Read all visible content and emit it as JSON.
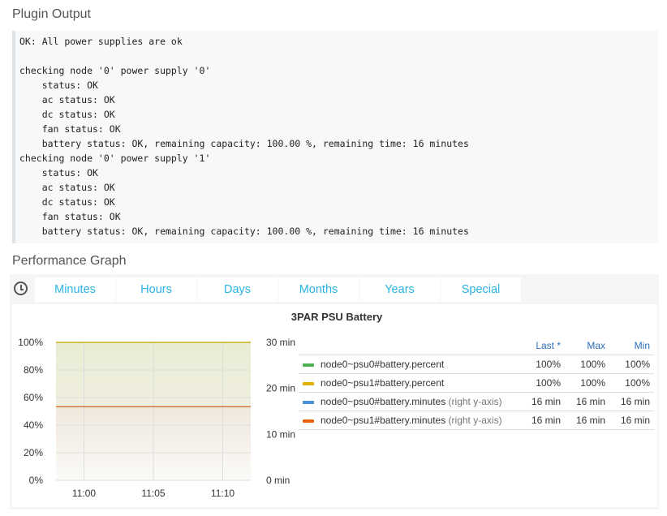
{
  "plugin_output": {
    "title": "Plugin Output",
    "lines": [
      "OK: All power supplies are ok",
      "",
      "checking node '0' power supply '0'",
      "    status: OK",
      "    ac status: OK",
      "    dc status: OK",
      "    fan status: OK",
      "    battery status: OK, remaining capacity: 100.00 %, remaining time: 16 minutes",
      "checking node '0' power supply '1'",
      "    status: OK",
      "    ac status: OK",
      "    dc status: OK",
      "    fan status: OK",
      "    battery status: OK, remaining capacity: 100.00 %, remaining time: 16 minutes"
    ]
  },
  "performance": {
    "title": "Performance Graph",
    "clock_icon": "clock-icon",
    "tabs": [
      "Minutes",
      "Hours",
      "Days",
      "Months",
      "Years",
      "Special"
    ]
  },
  "chart_data": {
    "type": "area",
    "title": "3PAR PSU Battery",
    "x_ticks": [
      "11:00",
      "11:05",
      "11:10"
    ],
    "y_left": {
      "ticks": [
        "0%",
        "20%",
        "40%",
        "60%",
        "80%",
        "100%"
      ],
      "range": [
        0,
        100
      ]
    },
    "y_right": {
      "ticks": [
        "0 min",
        "10 min",
        "20 min",
        "30 min"
      ],
      "range": [
        0,
        30
      ]
    },
    "grid": true,
    "legend": {
      "placement": "right",
      "headers": {
        "last": "Last *",
        "max": "Max",
        "min": "Min"
      }
    },
    "series": [
      {
        "name": "node0~psu0#battery.percent",
        "axis_note": "",
        "color": "#4caf50",
        "last": "100%",
        "max": "100%",
        "min": "100%",
        "value": 100,
        "axis": "left"
      },
      {
        "name": "node0~psu1#battery.percent",
        "axis_note": "",
        "color": "#e0b000",
        "last": "100%",
        "max": "100%",
        "min": "100%",
        "value": 100,
        "axis": "left"
      },
      {
        "name": "node0~psu0#battery.minutes",
        "axis_note": "(right y-axis)",
        "color": "#4a90d9",
        "last": "16 min",
        "max": "16 min",
        "min": "16 min",
        "value": 16,
        "axis": "right"
      },
      {
        "name": "node0~psu1#battery.minutes",
        "axis_note": "(right y-axis)",
        "color": "#e8640c",
        "last": "16 min",
        "max": "16 min",
        "min": "16 min",
        "value": 16,
        "axis": "right"
      }
    ]
  }
}
